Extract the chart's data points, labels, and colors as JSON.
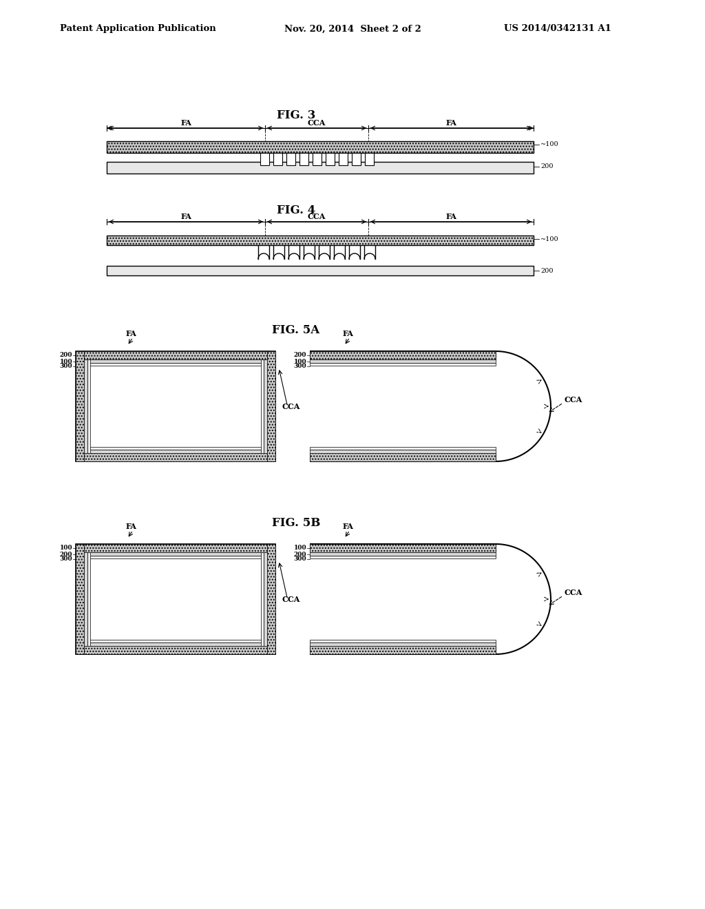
{
  "background_color": "#ffffff",
  "header_left": "Patent Application Publication",
  "header_mid": "Nov. 20, 2014  Sheet 2 of 2",
  "header_right": "US 2014/0342131 A1",
  "header_fontsize": 9.5,
  "fig_label_fontsize": 12,
  "annotation_fontsize": 8,
  "fig3_title": "FIG. 3",
  "fig4_title": "FIG. 4",
  "fig5a_title": "FIG. 5A",
  "fig5b_title": "FIG. 5B",
  "hatch_color": "#888888",
  "layer_gray": "#b8b8b8",
  "layer_light": "#e0e0e0"
}
